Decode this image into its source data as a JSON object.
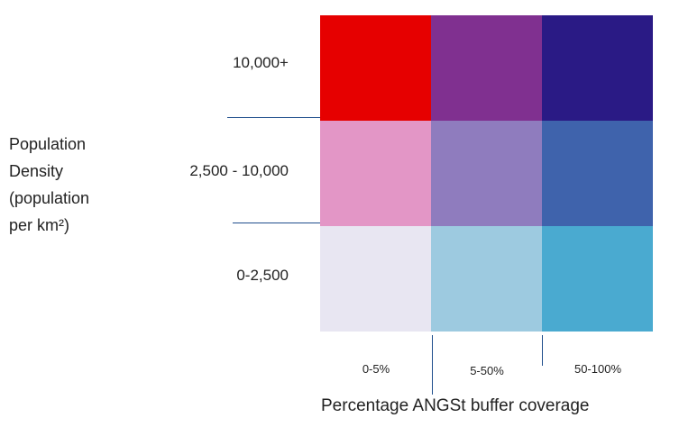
{
  "chart_data": {
    "type": "heatmap",
    "title": "",
    "ylabel_lines": [
      "Population",
      "Density",
      "(population",
      "per km²)"
    ],
    "xlabel": "Percentage ANGSt buffer coverage",
    "rows": [
      "10,000+",
      "2,500 - 10,000",
      "0-2,500"
    ],
    "columns": [
      "0-5%",
      "5-50%",
      "50-100%"
    ],
    "colors": [
      [
        "#e60000",
        "#803090",
        "#2a1a85"
      ],
      [
        "#e396c6",
        "#8f7cbe",
        "#3f63ac"
      ],
      [
        "#e8e6f2",
        "#9dcae0",
        "#4aaad0"
      ]
    ]
  }
}
